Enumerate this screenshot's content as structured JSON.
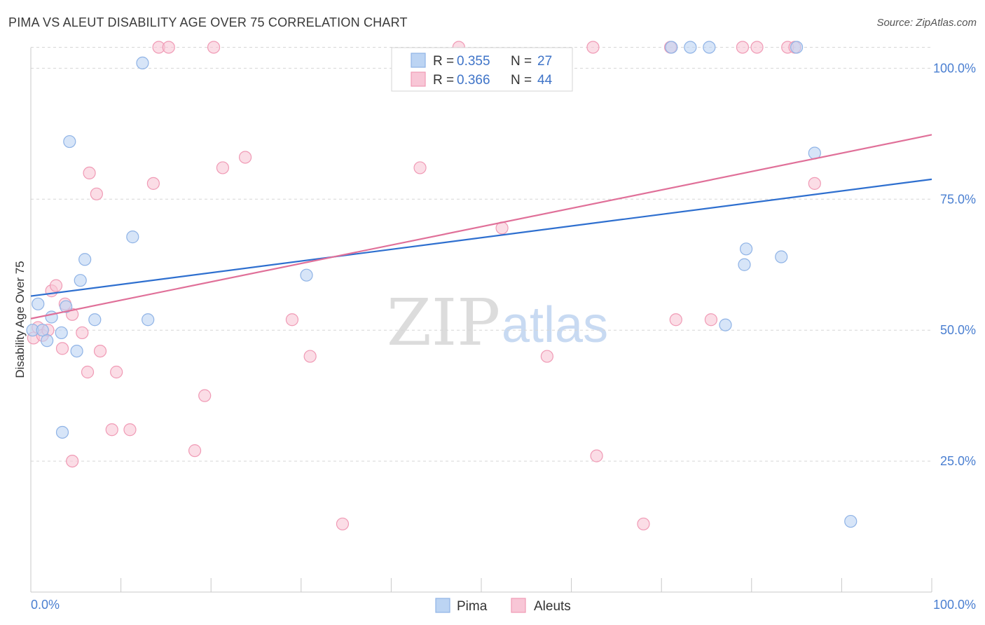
{
  "header": {
    "title": "PIMA VS ALEUT DISABILITY AGE OVER 75 CORRELATION CHART",
    "source": "Source: ZipAtlas.com"
  },
  "watermark": {
    "zip": "ZIP",
    "atlas": "atlas"
  },
  "colors": {
    "pima_fill": "#bcd4f3",
    "pima_stroke": "#8fb3e6",
    "pima_line": "#2e6fcf",
    "aleut_fill": "#f8c6d6",
    "aleut_stroke": "#f09ab5",
    "aleut_line": "#e07099",
    "tick_label": "#4a7fd1",
    "grid": "#d6d6d6"
  },
  "chart_data": {
    "type": "scatter",
    "title": "PIMA VS ALEUT DISABILITY AGE OVER 75 CORRELATION CHART",
    "xlabel": "",
    "ylabel": "Disability Age Over 75",
    "xlim": [
      0,
      100
    ],
    "ylim": [
      0,
      105
    ],
    "x_tick_labels": [
      "0.0%",
      "100.0%"
    ],
    "y_ticks": [
      25,
      50,
      75,
      100
    ],
    "y_tick_labels": [
      "25.0%",
      "50.0%",
      "75.0%",
      "100.0%"
    ],
    "grid": true,
    "legend": [
      {
        "name": "Pima",
        "r_label": "R =",
        "r": "0.355",
        "n_label": "N =",
        "n": "27"
      },
      {
        "name": "Aleuts",
        "r_label": "R =",
        "r": "0.366",
        "n_label": "N =",
        "n": "44"
      }
    ],
    "series": [
      {
        "name": "Pima",
        "trend": {
          "x": [
            0,
            100
          ],
          "y": [
            56.5,
            78.8
          ]
        },
        "points": [
          [
            0.2,
            50.0
          ],
          [
            0.8,
            55.0
          ],
          [
            1.3,
            50.0
          ],
          [
            1.8,
            48.0
          ],
          [
            2.3,
            52.5
          ],
          [
            3.5,
            30.5
          ],
          [
            3.4,
            49.5
          ],
          [
            3.9,
            54.5
          ],
          [
            4.3,
            86.0
          ],
          [
            5.1,
            46.0
          ],
          [
            5.5,
            59.5
          ],
          [
            6.0,
            63.5
          ],
          [
            7.1,
            52.0
          ],
          [
            11.3,
            67.8
          ],
          [
            12.4,
            101.0
          ],
          [
            13.0,
            52.0
          ],
          [
            30.6,
            60.5
          ],
          [
            71.1,
            104.0
          ],
          [
            73.2,
            104.0
          ],
          [
            75.3,
            104.0
          ],
          [
            77.1,
            51.0
          ],
          [
            79.2,
            62.5
          ],
          [
            79.4,
            65.5
          ],
          [
            83.3,
            64.0
          ],
          [
            85.0,
            104.0
          ],
          [
            87.0,
            83.8
          ],
          [
            91.0,
            13.5
          ]
        ]
      },
      {
        "name": "Aleuts",
        "trend": {
          "x": [
            0,
            100
          ],
          "y": [
            52.2,
            87.3
          ]
        },
        "points": [
          [
            0.3,
            48.5
          ],
          [
            0.8,
            50.5
          ],
          [
            1.3,
            49.0
          ],
          [
            1.9,
            50.0
          ],
          [
            2.3,
            57.5
          ],
          [
            2.8,
            58.5
          ],
          [
            3.5,
            46.5
          ],
          [
            3.8,
            55.0
          ],
          [
            4.6,
            25.0
          ],
          [
            4.6,
            53.0
          ],
          [
            5.7,
            49.5
          ],
          [
            6.3,
            42.0
          ],
          [
            6.5,
            80.0
          ],
          [
            7.3,
            76.0
          ],
          [
            7.7,
            46.0
          ],
          [
            9.0,
            31.0
          ],
          [
            9.5,
            42.0
          ],
          [
            11.0,
            31.0
          ],
          [
            13.6,
            78.0
          ],
          [
            14.2,
            104.0
          ],
          [
            15.3,
            104.0
          ],
          [
            18.2,
            27.0
          ],
          [
            19.3,
            37.5
          ],
          [
            20.3,
            104.0
          ],
          [
            21.3,
            81.0
          ],
          [
            23.8,
            83.0
          ],
          [
            29.0,
            52.0
          ],
          [
            31.0,
            45.0
          ],
          [
            34.6,
            13.0
          ],
          [
            43.2,
            81.0
          ],
          [
            47.5,
            104.0
          ],
          [
            52.3,
            69.5
          ],
          [
            57.3,
            45.0
          ],
          [
            62.4,
            104.0
          ],
          [
            62.8,
            26.0
          ],
          [
            68.0,
            13.0
          ],
          [
            71.0,
            104.0
          ],
          [
            71.6,
            52.0
          ],
          [
            75.5,
            52.0
          ],
          [
            79.0,
            104.0
          ],
          [
            80.6,
            104.0
          ],
          [
            84.0,
            104.0
          ],
          [
            84.8,
            104.0
          ],
          [
            87.0,
            78.0
          ]
        ]
      }
    ]
  }
}
